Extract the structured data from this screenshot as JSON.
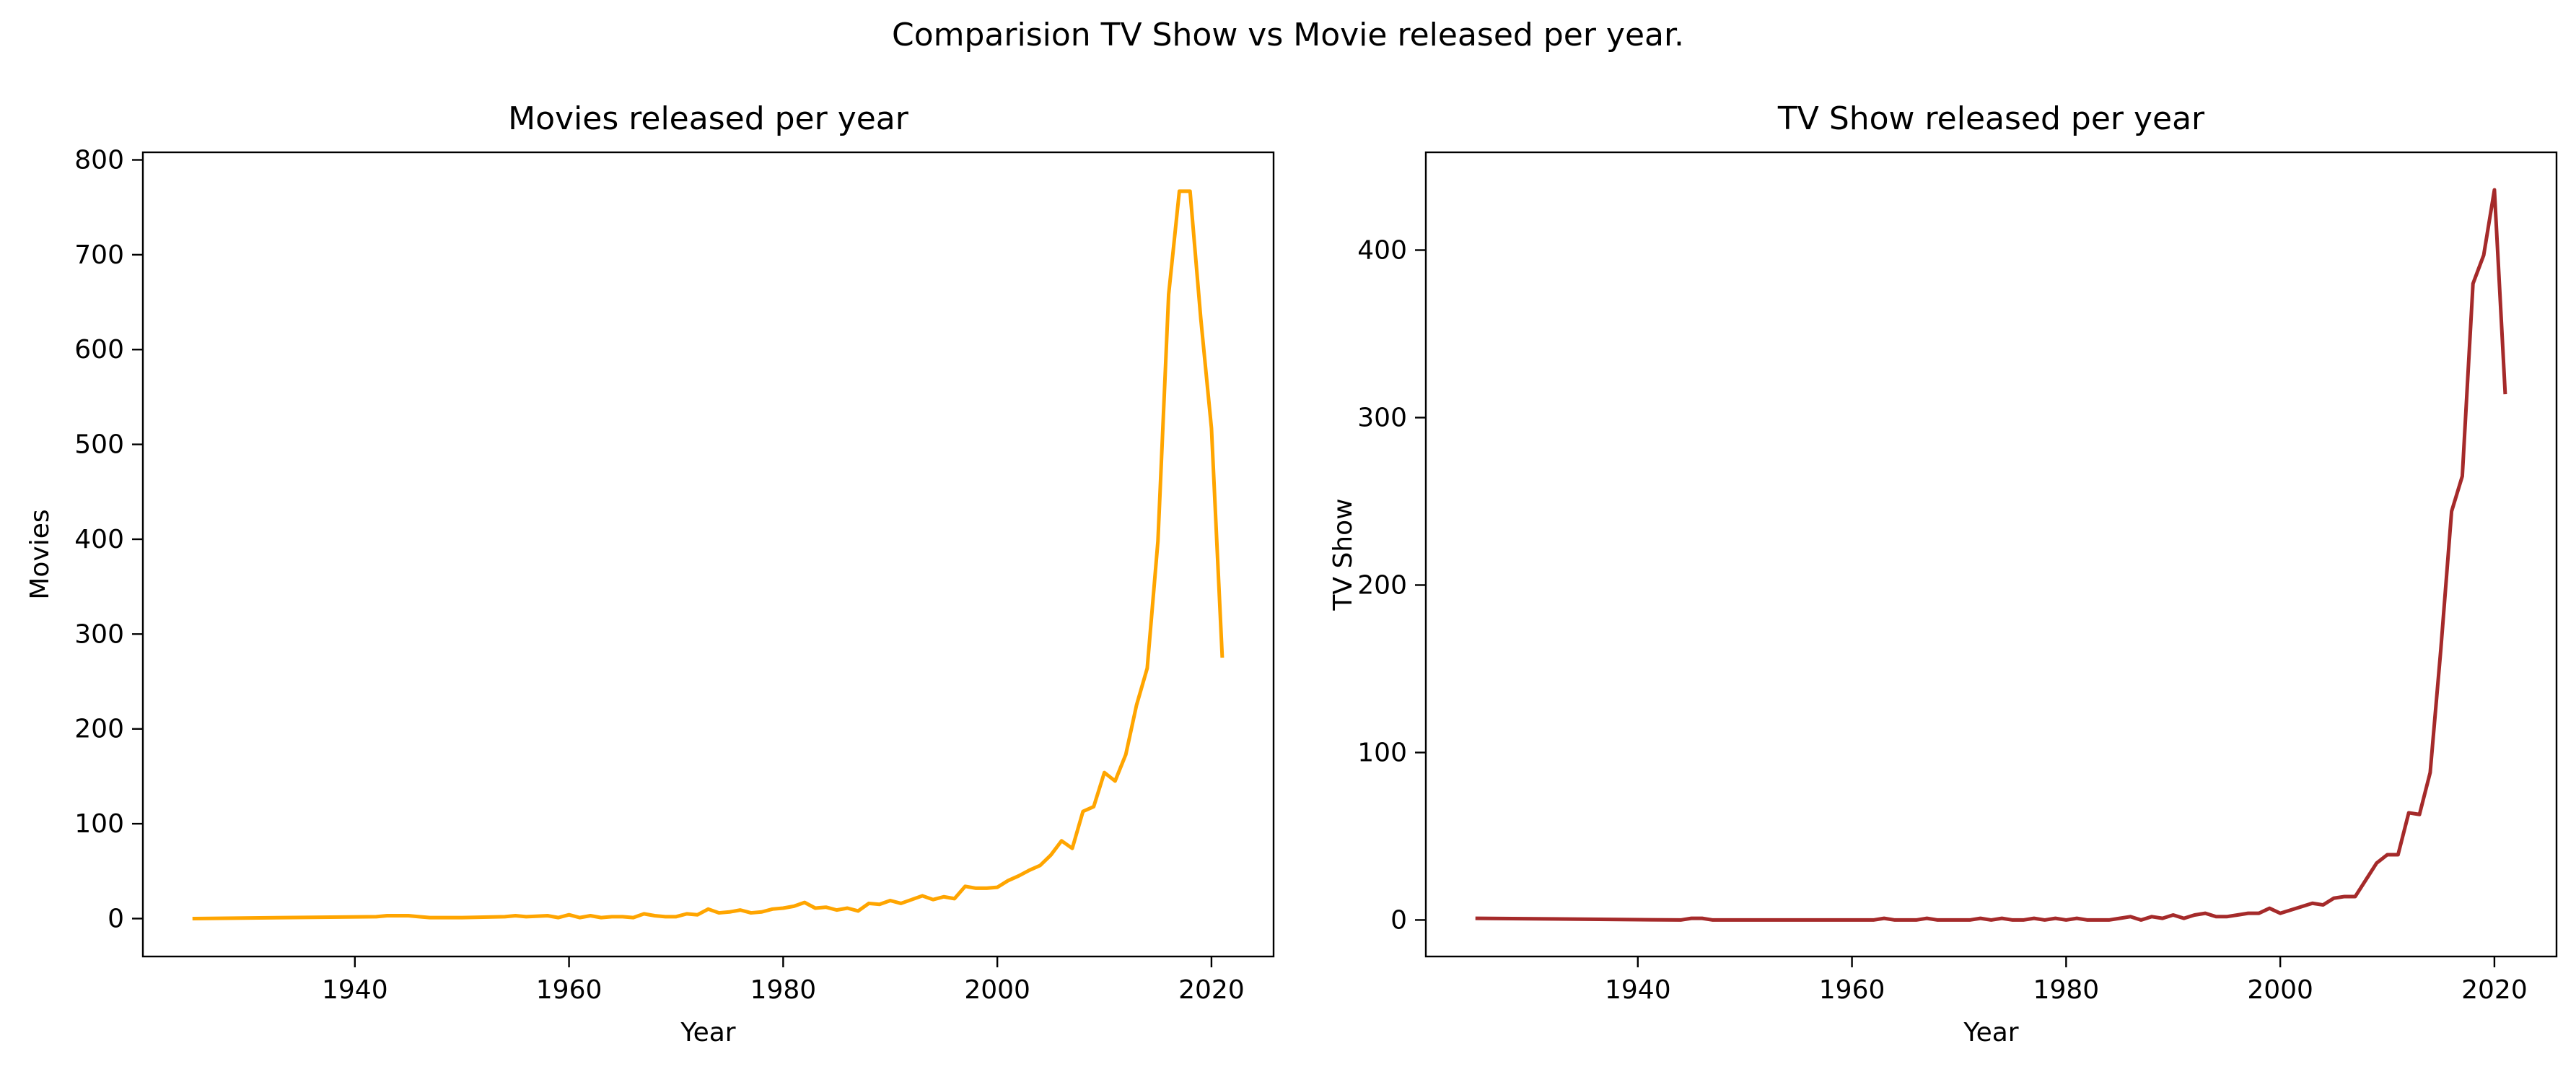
{
  "figure": {
    "suptitle": "Comparision TV Show vs Movie released per year."
  },
  "chart_data": [
    {
      "type": "line",
      "title": "Movies released per year",
      "xlabel": "Year",
      "ylabel": "Movies",
      "xlim": [
        1920.2,
        2025.8
      ],
      "ylim": [
        -40,
        808
      ],
      "xticks": [
        1940,
        1960,
        1980,
        2000,
        2020
      ],
      "yticks": [
        0,
        100,
        200,
        300,
        400,
        500,
        600,
        700,
        800
      ],
      "grid": false,
      "color": "#FFA500",
      "series": [
        {
          "x": [
            1925,
            1942,
            1943,
            1944,
            1945,
            1946,
            1947,
            1950,
            1954,
            1955,
            1956,
            1958,
            1959,
            1960,
            1961,
            1962,
            1963,
            1964,
            1965,
            1966,
            1967,
            1968,
            1969,
            1970,
            1971,
            1972,
            1973,
            1974,
            1975,
            1976,
            1977,
            1978,
            1979,
            1980,
            1981,
            1982,
            1983,
            1984,
            1985,
            1986,
            1987,
            1988,
            1989,
            1990,
            1991,
            1992,
            1993,
            1994,
            1995,
            1996,
            1997,
            1998,
            1999,
            2000,
            2001,
            2002,
            2003,
            2004,
            2005,
            2006,
            2007,
            2008,
            2009,
            2010,
            2011,
            2012,
            2013,
            2014,
            2015,
            2016,
            2017,
            2018,
            2019,
            2020,
            2021
          ],
          "y": [
            0,
            2,
            3,
            3,
            3,
            2,
            1,
            1,
            2,
            3,
            2,
            3,
            1,
            4,
            1,
            3,
            1,
            2,
            2,
            1,
            5,
            3,
            2,
            2,
            5,
            4,
            10,
            6,
            7,
            9,
            6,
            7,
            10,
            11,
            13,
            17,
            11,
            12,
            9,
            11,
            8,
            16,
            15,
            19,
            16,
            20,
            24,
            20,
            23,
            21,
            34,
            32,
            32,
            33,
            40,
            45,
            51,
            56,
            67,
            82,
            74,
            113,
            118,
            154,
            145,
            173,
            225,
            264,
            398,
            658,
            767,
            767,
            633,
            517,
            277
          ]
        }
      ]
    },
    {
      "type": "line",
      "title": "TV Show released per year",
      "xlabel": "Year",
      "ylabel": "TV Show",
      "xlim": [
        1920.2,
        2025.8
      ],
      "ylim": [
        -21.8,
        458.4
      ],
      "xticks": [
        1940,
        1960,
        1980,
        2000,
        2020
      ],
      "yticks": [
        0,
        100,
        200,
        300,
        400
      ],
      "grid": false,
      "color": "#A52A2A",
      "series": [
        {
          "x": [
            1925,
            1944,
            1945,
            1946,
            1947,
            1962,
            1963,
            1964,
            1965,
            1966,
            1967,
            1968,
            1969,
            1970,
            1971,
            1972,
            1973,
            1974,
            1975,
            1976,
            1977,
            1978,
            1979,
            1980,
            1981,
            1982,
            1983,
            1984,
            1985,
            1986,
            1987,
            1988,
            1989,
            1990,
            1991,
            1992,
            1993,
            1994,
            1995,
            1996,
            1997,
            1998,
            1999,
            2000,
            2001,
            2002,
            2003,
            2004,
            2005,
            2006,
            2007,
            2008,
            2009,
            2010,
            2011,
            2012,
            2013,
            2014,
            2015,
            2016,
            2017,
            2018,
            2019,
            2020,
            2021
          ],
          "y": [
            1,
            0,
            1,
            1,
            0,
            0,
            1,
            0,
            0,
            0,
            1,
            0,
            0,
            0,
            0,
            1,
            0,
            1,
            0,
            0,
            1,
            0,
            1,
            0,
            1,
            0,
            0,
            0,
            1,
            2,
            0,
            2,
            1,
            3,
            1,
            3,
            4,
            2,
            2,
            3,
            4,
            4,
            7,
            4,
            6,
            8,
            10,
            9,
            13,
            14,
            14,
            24,
            34,
            39,
            39,
            64,
            63,
            88,
            162,
            244,
            265,
            380,
            397,
            436,
            315
          ]
        }
      ]
    }
  ]
}
